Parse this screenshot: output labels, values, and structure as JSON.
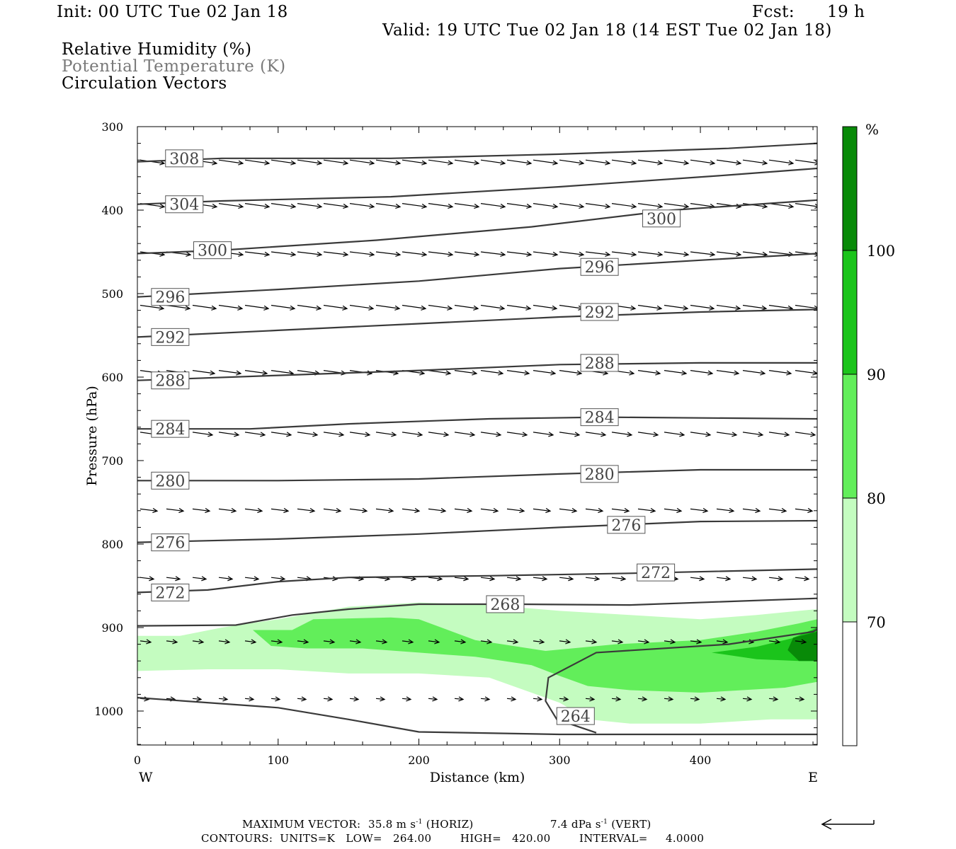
{
  "header": {
    "init": "Init: 00 UTC Tue 02 Jan 18",
    "fcst_label": "Fcst:",
    "fcst_value": "19 h",
    "valid": "Valid: 19 UTC Tue 02 Jan 18 (14 EST Tue 02 Jan 18)",
    "legend_items": [
      "Relative Humidity (%)",
      "Potential Temperature (K)",
      "Circulation Vectors"
    ]
  },
  "chart_data": {
    "type": "cross-section",
    "xlabel": "Distance (km)",
    "ylabel": "Pressure (hPa)",
    "xlim": [
      0,
      483
    ],
    "ylim": [
      1040,
      300
    ],
    "x_ticks": [
      0,
      100,
      200,
      300,
      400
    ],
    "y_ticks": [
      300,
      400,
      500,
      600,
      700,
      800,
      900,
      1000
    ],
    "x_end_labels": {
      "left": "W",
      "right": "E"
    },
    "colorbar": {
      "unit_label": "%",
      "levels": [
        70,
        80,
        90,
        100
      ],
      "colors": [
        "#ffffff",
        "#c4fcc0",
        "#62ee5a",
        "#1bc41b",
        "#088a08"
      ]
    },
    "isentropes": [
      {
        "theta": 308,
        "points": [
          [
            0,
            342
          ],
          [
            60,
            338
          ],
          [
            180,
            338
          ],
          [
            300,
            333
          ],
          [
            420,
            326
          ],
          [
            483,
            320
          ]
        ],
        "labels": [
          [
            20,
            338
          ]
        ]
      },
      {
        "theta": 304,
        "points": [
          [
            0,
            393
          ],
          [
            60,
            389
          ],
          [
            180,
            384
          ],
          [
            300,
            372
          ],
          [
            420,
            358
          ],
          [
            483,
            350
          ]
        ],
        "labels": [
          [
            20,
            393
          ]
        ]
      },
      {
        "theta": 300,
        "points": [
          [
            0,
            452
          ],
          [
            60,
            448
          ],
          [
            170,
            436
          ],
          [
            280,
            420
          ],
          [
            380,
            400
          ],
          [
            483,
            388
          ]
        ],
        "labels": [
          [
            40,
            448
          ],
          [
            359,
            410
          ]
        ]
      },
      {
        "theta": 296,
        "points": [
          [
            0,
            504
          ],
          [
            100,
            495
          ],
          [
            200,
            485
          ],
          [
            300,
            470
          ],
          [
            400,
            460
          ],
          [
            483,
            452
          ]
        ],
        "labels": [
          [
            10,
            504
          ],
          [
            315,
            468
          ]
        ]
      },
      {
        "theta": 292,
        "points": [
          [
            0,
            552
          ],
          [
            100,
            544
          ],
          [
            200,
            536
          ],
          [
            300,
            528
          ],
          [
            400,
            522
          ],
          [
            483,
            519
          ]
        ],
        "labels": [
          [
            10,
            552
          ],
          [
            315,
            522
          ]
        ]
      },
      {
        "theta": 288,
        "points": [
          [
            0,
            604
          ],
          [
            100,
            598
          ],
          [
            200,
            592
          ],
          [
            300,
            585
          ],
          [
            400,
            583
          ],
          [
            483,
            583
          ]
        ],
        "labels": [
          [
            10,
            604
          ],
          [
            315,
            583
          ]
        ]
      },
      {
        "theta": 284,
        "points": [
          [
            0,
            662
          ],
          [
            80,
            662
          ],
          [
            150,
            656
          ],
          [
            250,
            650
          ],
          [
            330,
            648
          ],
          [
            483,
            650
          ]
        ],
        "labels": [
          [
            10,
            662
          ],
          [
            315,
            648
          ]
        ]
      },
      {
        "theta": 280,
        "points": [
          [
            0,
            724
          ],
          [
            100,
            724
          ],
          [
            200,
            722
          ],
          [
            300,
            716
          ],
          [
            400,
            711
          ],
          [
            483,
            711
          ]
        ],
        "labels": [
          [
            10,
            724
          ],
          [
            315,
            716
          ]
        ]
      },
      {
        "theta": 276,
        "points": [
          [
            0,
            798
          ],
          [
            100,
            794
          ],
          [
            200,
            788
          ],
          [
            300,
            780
          ],
          [
            400,
            773
          ],
          [
            483,
            772
          ]
        ],
        "labels": [
          [
            10,
            798
          ],
          [
            334,
            777
          ]
        ]
      },
      {
        "theta": 272,
        "points": [
          [
            0,
            858
          ],
          [
            50,
            855
          ],
          [
            100,
            845
          ],
          [
            150,
            840
          ],
          [
            250,
            838
          ],
          [
            350,
            835
          ],
          [
            483,
            830
          ]
        ],
        "labels": [
          [
            10,
            858
          ],
          [
            355,
            834
          ]
        ]
      },
      {
        "theta": 268,
        "points": [
          [
            0,
            898
          ],
          [
            70,
            897
          ],
          [
            110,
            885
          ],
          [
            150,
            878
          ],
          [
            200,
            872
          ],
          [
            270,
            872
          ],
          [
            350,
            873
          ],
          [
            483,
            865
          ]
        ],
        "labels": [
          [
            248,
            872
          ]
        ]
      },
      {
        "theta": 264,
        "points": [
          [
            0,
            984
          ],
          [
            100,
            996
          ],
          [
            150,
            1010
          ],
          [
            200,
            1025
          ],
          [
            300,
            1028
          ],
          [
            400,
            1028
          ],
          [
            483,
            1028
          ]
        ],
        "labels": []
      },
      {
        "theta": 264,
        "points": [
          [
            326,
            1026
          ],
          [
            298,
            1010
          ],
          [
            290,
            988
          ],
          [
            292,
            960
          ],
          [
            326,
            930
          ],
          [
            420,
            920
          ],
          [
            480,
            905
          ],
          [
            483,
            902
          ]
        ],
        "labels": [
          [
            298,
            1006
          ]
        ]
      }
    ],
    "rh_regions": [
      {
        "level": 70,
        "points": [
          [
            0,
            910
          ],
          [
            30,
            910
          ],
          [
            60,
            900
          ],
          [
            100,
            890
          ],
          [
            150,
            875
          ],
          [
            200,
            870
          ],
          [
            250,
            873
          ],
          [
            300,
            880
          ],
          [
            350,
            885
          ],
          [
            400,
            890
          ],
          [
            440,
            885
          ],
          [
            470,
            880
          ],
          [
            483,
            878
          ],
          [
            483,
            1010
          ],
          [
            450,
            1010
          ],
          [
            400,
            1015
          ],
          [
            350,
            1015
          ],
          [
            320,
            1010
          ],
          [
            300,
            990
          ],
          [
            250,
            960
          ],
          [
            200,
            955
          ],
          [
            150,
            955
          ],
          [
            100,
            950
          ],
          [
            50,
            950
          ],
          [
            0,
            952
          ]
        ]
      },
      {
        "level": 80,
        "points": [
          [
            82,
            903
          ],
          [
            110,
            903
          ],
          [
            125,
            890
          ],
          [
            180,
            888
          ],
          [
            200,
            890
          ],
          [
            240,
            915
          ],
          [
            290,
            928
          ],
          [
            340,
            920
          ],
          [
            400,
            915
          ],
          [
            440,
            905
          ],
          [
            470,
            895
          ],
          [
            483,
            890
          ],
          [
            483,
            965
          ],
          [
            460,
            972
          ],
          [
            400,
            978
          ],
          [
            350,
            975
          ],
          [
            320,
            970
          ],
          [
            300,
            958
          ],
          [
            280,
            945
          ],
          [
            240,
            935
          ],
          [
            200,
            930
          ],
          [
            160,
            925
          ],
          [
            120,
            925
          ],
          [
            95,
            922
          ]
        ]
      },
      {
        "level": 90,
        "points": [
          [
            408,
            930
          ],
          [
            440,
            923
          ],
          [
            465,
            913
          ],
          [
            483,
            900
          ],
          [
            483,
            940
          ],
          [
            470,
            940
          ],
          [
            440,
            938
          ]
        ]
      },
      {
        "level": 100,
        "points": [
          [
            466,
            912
          ],
          [
            483,
            905
          ],
          [
            483,
            940
          ],
          [
            470,
            940
          ],
          [
            462,
            927
          ]
        ]
      }
    ],
    "vector_rows": [
      {
        "p": 340,
        "x0": 0,
        "x1": 483,
        "len": 34,
        "tilt": 0.14
      },
      {
        "p": 392,
        "x0": 0,
        "x1": 483,
        "len": 34,
        "tilt": 0.14
      },
      {
        "p": 450,
        "x0": 0,
        "x1": 483,
        "len": 34,
        "tilt": 0.12
      },
      {
        "p": 514,
        "x0": 0,
        "x1": 483,
        "len": 33,
        "tilt": 0.14
      },
      {
        "p": 592,
        "x0": 0,
        "x1": 483,
        "len": 31,
        "tilt": 0.14
      },
      {
        "p": 666,
        "x0": 0,
        "x1": 483,
        "len": 28,
        "tilt": 0.14
      },
      {
        "p": 758,
        "x0": 0,
        "x1": 483,
        "len": 24,
        "tilt": 0.12
      },
      {
        "p": 840,
        "x0": 0,
        "x1": 483,
        "len": 19,
        "tilt": 0.12
      },
      {
        "p": 916,
        "x0": 0,
        "x1": 483,
        "len": 15,
        "tilt": 0.12
      },
      {
        "p": 985,
        "x0": 0,
        "x1": 483,
        "len": 12,
        "tilt": 0.1
      }
    ]
  },
  "footer": {
    "max_vector_label": "MAXIMUM VECTOR:",
    "horiz_value": "35.8 m s",
    "horiz_unit": "(HORIZ)",
    "vert_value": "7.4 dPa s",
    "vert_unit": "(VERT)",
    "exponent": "-1",
    "contours": "CONTOURS:  UNITS=K   LOW=   264.00        HIGH=   420.00        INTERVAL=     4.0000"
  }
}
